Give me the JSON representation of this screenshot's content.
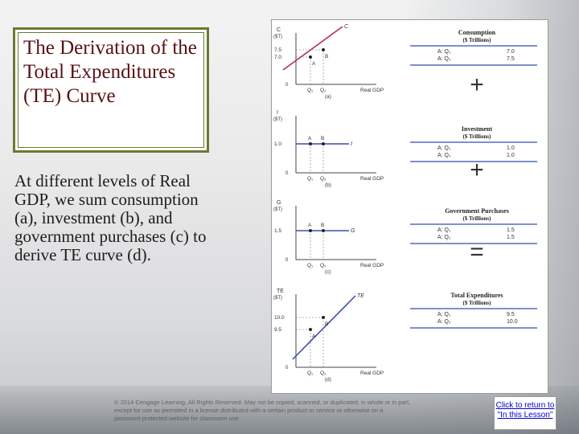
{
  "slide": {
    "title": "The Derivation of the Total Expenditures (TE) Curve",
    "body": "At different levels of Real GDP, we sum consumption (a), investment (b), and government purchases (c) to derive TE curve (d).",
    "copyright": "© 2014 Cengage Learning. All Rights Reserved. May not be copied, scanned, or duplicated, in whole or in part, except for use as permitted in a license distributed with a certain product or service or otherwise on a password-protected website for classroom use.",
    "return_link": "Click to return to \"In this Lesson\""
  },
  "figure": {
    "x_axis_label": "Real GDP",
    "origin": "0",
    "x_ticks": [
      "Q1",
      "Q2"
    ],
    "panels": [
      {
        "panel_label": "(a)",
        "y_axis_label": [
          "C",
          "($T)"
        ],
        "y_ticks": [
          "7.5",
          "7.0"
        ],
        "curve_label": "C",
        "point_labels": [
          "A",
          "B"
        ],
        "side_title": [
          "Consumption",
          "($ Trillions)"
        ],
        "rows": [
          {
            "label": "A: Q1",
            "value": "7.0"
          },
          {
            "label": "A: Q2",
            "value": "7.5"
          }
        ],
        "operator": "+"
      },
      {
        "panel_label": "(b)",
        "y_axis_label": [
          "I",
          "($T)"
        ],
        "y_ticks": [
          "1.0"
        ],
        "curve_label": "I",
        "point_labels": [
          "A",
          "B"
        ],
        "side_title": [
          "Investment",
          "($ Trillions)"
        ],
        "rows": [
          {
            "label": "A: Q1",
            "value": "1.0"
          },
          {
            "label": "A: Q2",
            "value": "1.0"
          }
        ],
        "operator": "+"
      },
      {
        "panel_label": "(c)",
        "y_axis_label": [
          "G",
          "($T)"
        ],
        "y_ticks": [
          "1.5"
        ],
        "curve_label": "G",
        "point_labels": [
          "A",
          "B"
        ],
        "side_title": [
          "Government Purchases",
          "($ Trillions)"
        ],
        "rows": [
          {
            "label": "A: Q1",
            "value": "1.5"
          },
          {
            "label": "A: Q2",
            "value": "1.5"
          }
        ],
        "operator": "="
      },
      {
        "panel_label": "(d)",
        "y_axis_label": [
          "TE",
          "($T)"
        ],
        "y_ticks": [
          "10.0",
          "9.5"
        ],
        "curve_label": "TE",
        "point_labels": [
          "A",
          "B"
        ],
        "side_title": [
          "Total Expenditures",
          "($ Trillions)"
        ],
        "rows": [
          {
            "label": "A: Q1",
            "value": "9.5"
          },
          {
            "label": "A: Q2",
            "value": "10.0"
          }
        ],
        "operator": ""
      }
    ]
  },
  "colors": {
    "title": "#5a1014",
    "title_border": "#6b7a33",
    "curve_c": "#b03060",
    "curve": "#3a4fa8",
    "table_band": "#2f4fb0"
  }
}
